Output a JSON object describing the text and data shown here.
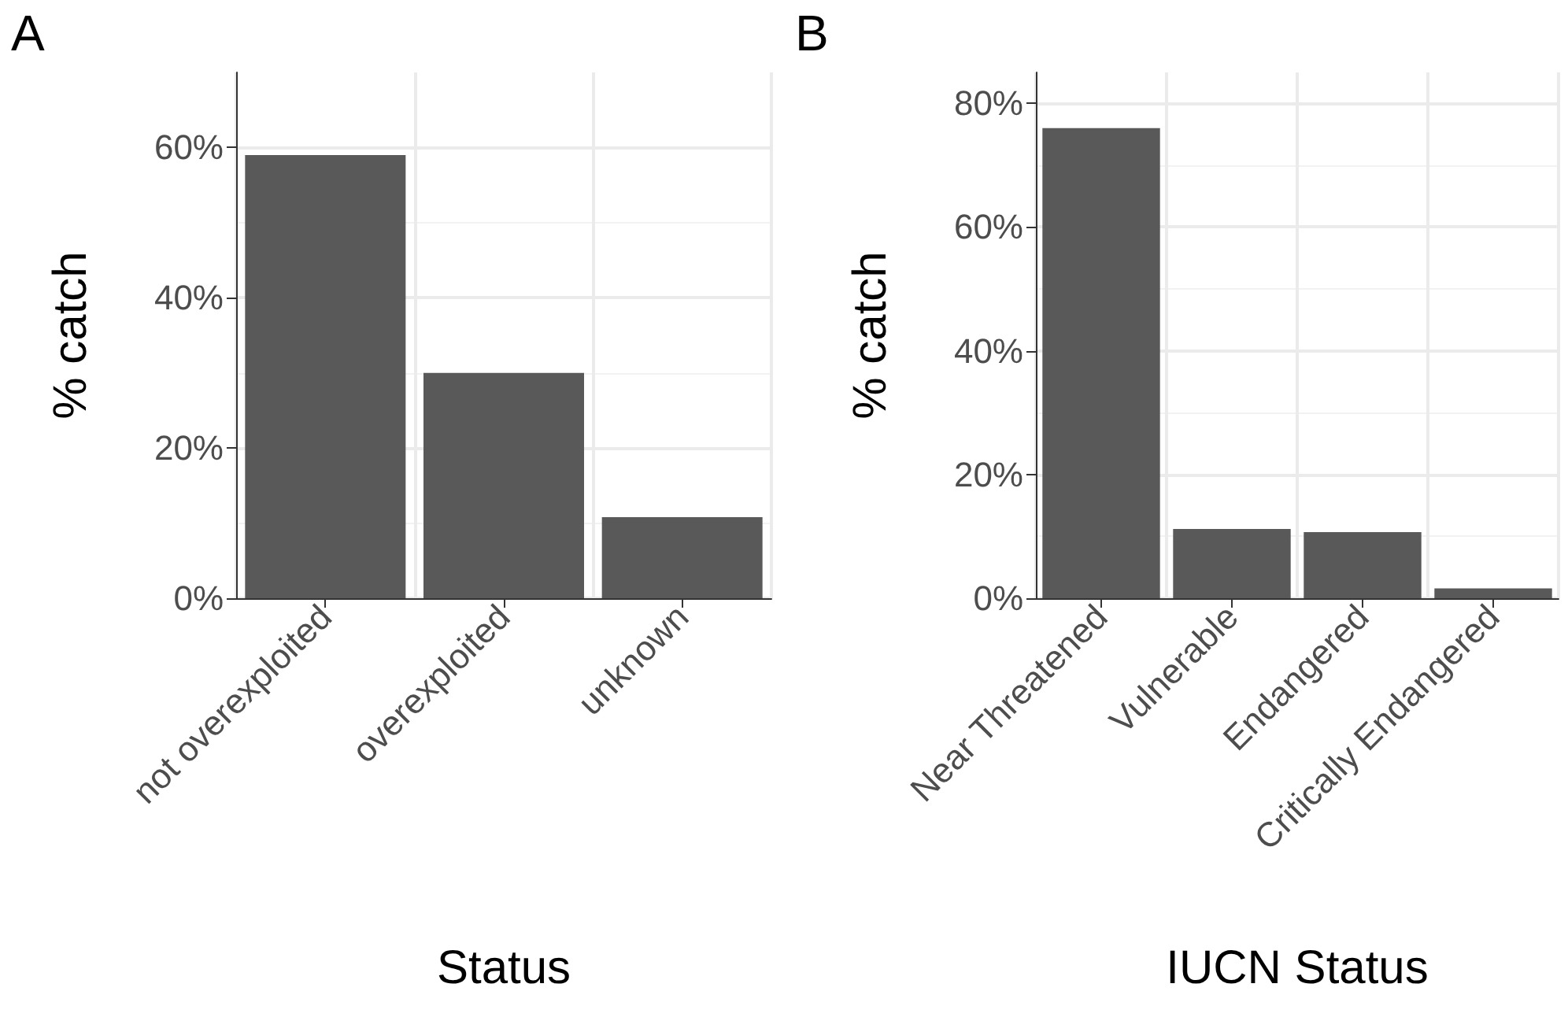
{
  "chart_data": [
    {
      "type": "bar",
      "title": "A",
      "xlabel": "Status",
      "ylabel": "% catch",
      "categories": [
        "not overexploited",
        "overexploited",
        "unknown"
      ],
      "values": [
        59,
        30,
        10.8
      ],
      "color": "#595959",
      "ylim": [
        0,
        70
      ],
      "yticks": [
        {
          "value": 0,
          "label": "0%"
        },
        {
          "value": 20,
          "label": "20%"
        },
        {
          "value": 40,
          "label": "40%"
        },
        {
          "value": 60,
          "label": "60%"
        }
      ],
      "grid": true
    },
    {
      "type": "bar",
      "title": "B",
      "xlabel": "IUCN Status",
      "ylabel": "% catch",
      "categories": [
        "Near Threatened",
        "Vulnerable",
        "Endangered",
        "Critically Endangered"
      ],
      "values": [
        76,
        11.2,
        10.7,
        1.6
      ],
      "color": "#595959",
      "ylim": [
        0,
        85
      ],
      "yticks": [
        {
          "value": 0,
          "label": "0%"
        },
        {
          "value": 20,
          "label": "20%"
        },
        {
          "value": 40,
          "label": "40%"
        },
        {
          "value": 60,
          "label": "60%"
        },
        {
          "value": 80,
          "label": "80%"
        }
      ],
      "grid": true
    }
  ]
}
